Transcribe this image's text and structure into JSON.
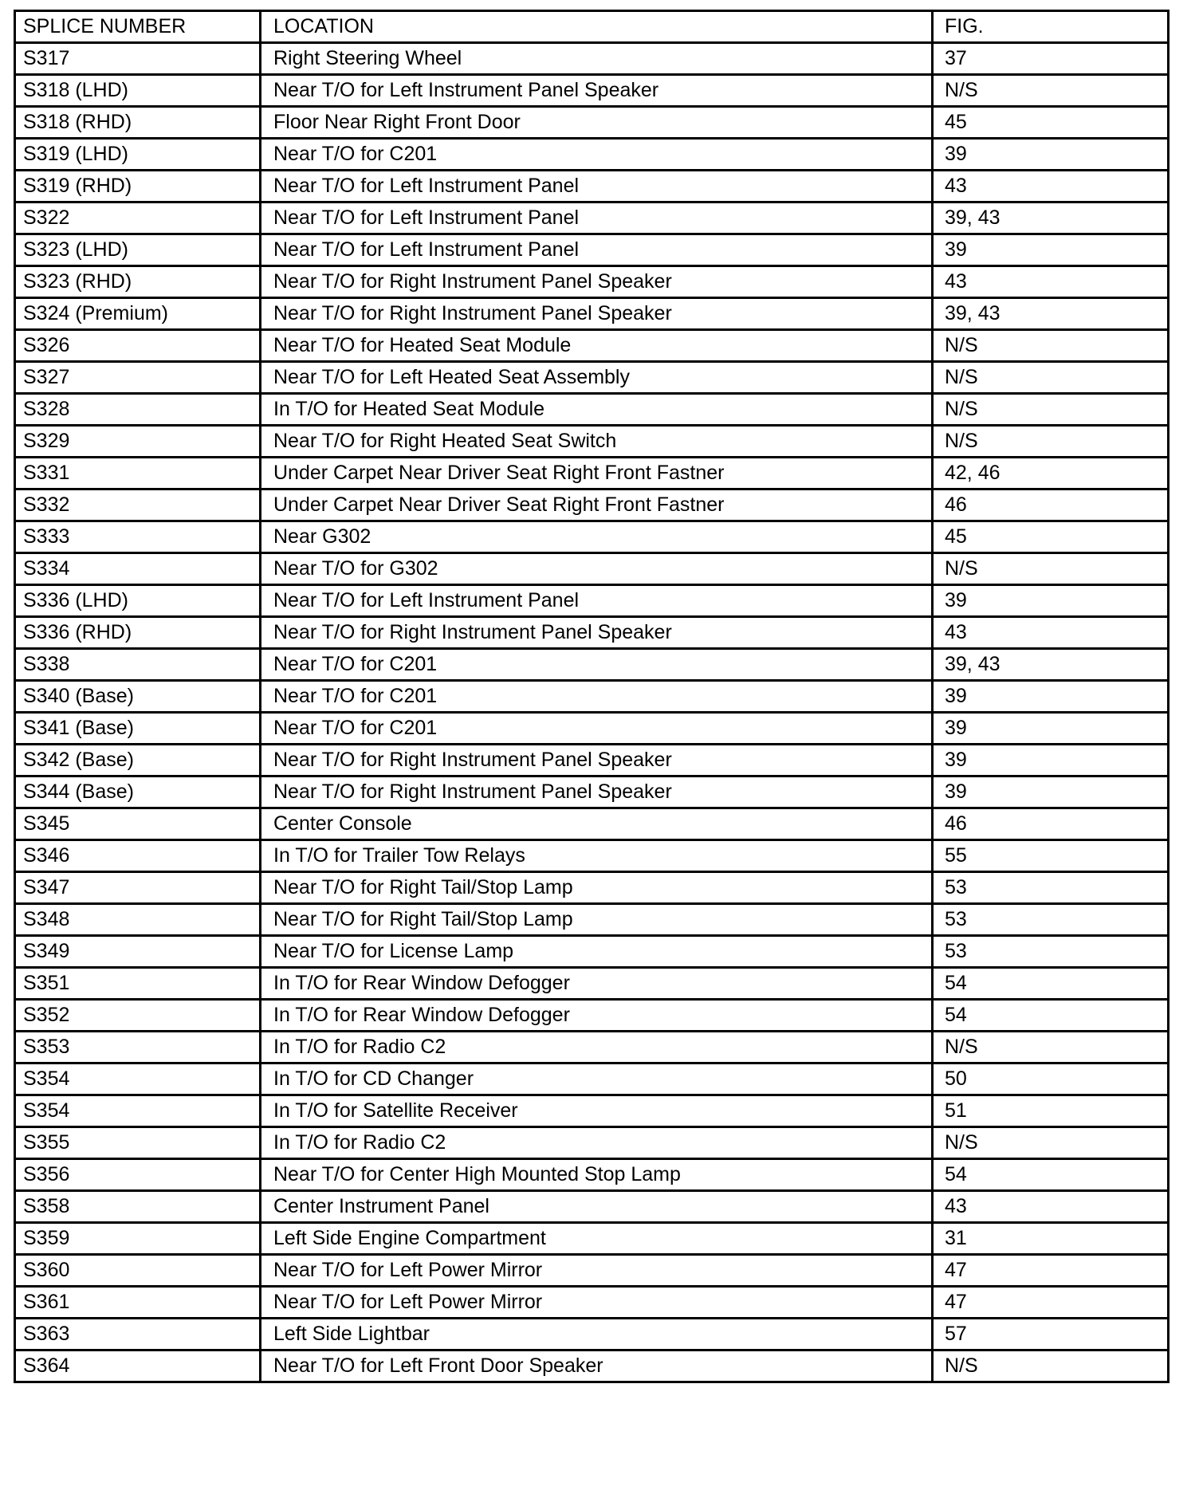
{
  "headers": {
    "splice": "SPLICE NUMBER",
    "location": "LOCATION",
    "fig": "FIG."
  },
  "rows": [
    [
      "S317",
      "Right Steering Wheel",
      "37"
    ],
    [
      "S318 (LHD)",
      "Near T/O for Left Instrument Panel Speaker",
      "N/S"
    ],
    [
      "S318 (RHD)",
      "Floor Near Right Front Door",
      "45"
    ],
    [
      "S319 (LHD)",
      "Near T/O for C201",
      "39"
    ],
    [
      "S319 (RHD)",
      "Near T/O for Left Instrument Panel",
      "43"
    ],
    [
      "S322",
      "Near T/O for Left Instrument Panel",
      "39, 43"
    ],
    [
      "S323 (LHD)",
      "Near T/O for Left Instrument Panel",
      "39"
    ],
    [
      "S323 (RHD)",
      "Near T/O for Right Instrument Panel Speaker",
      "43"
    ],
    [
      "S324 (Premium)",
      "Near T/O for Right Instrument Panel Speaker",
      "39, 43"
    ],
    [
      "S326",
      "Near T/O for Heated Seat Module",
      "N/S"
    ],
    [
      "S327",
      "Near T/O for Left Heated Seat Assembly",
      "N/S"
    ],
    [
      "S328",
      "In T/O for Heated Seat Module",
      "N/S"
    ],
    [
      "S329",
      "Near T/O for Right Heated Seat Switch",
      "N/S"
    ],
    [
      "S331",
      "Under Carpet Near Driver Seat Right Front Fastner",
      "42, 46"
    ],
    [
      "S332",
      "Under Carpet Near Driver Seat Right Front Fastner",
      "46"
    ],
    [
      "S333",
      "Near G302",
      "45"
    ],
    [
      "S334",
      "Near T/O for G302",
      "N/S"
    ],
    [
      "S336 (LHD)",
      "Near T/O for Left Instrument Panel",
      "39"
    ],
    [
      "S336 (RHD)",
      "Near T/O for Right Instrument Panel Speaker",
      "43"
    ],
    [
      "S338",
      "Near T/O for C201",
      "39, 43"
    ],
    [
      "S340 (Base)",
      "Near T/O for C201",
      "39"
    ],
    [
      "S341 (Base)",
      "Near T/O for C201",
      "39"
    ],
    [
      "S342 (Base)",
      "Near T/O for Right Instrument Panel Speaker",
      "39"
    ],
    [
      "S344 (Base)",
      "Near T/O for Right Instrument Panel Speaker",
      "39"
    ],
    [
      "S345",
      "Center Console",
      "46"
    ],
    [
      "S346",
      "In T/O for Trailer Tow Relays",
      "55"
    ],
    [
      "S347",
      "Near T/O for Right Tail/Stop Lamp",
      "53"
    ],
    [
      "S348",
      "Near T/O for Right Tail/Stop Lamp",
      "53"
    ],
    [
      "S349",
      "Near T/O for License Lamp",
      "53"
    ],
    [
      "S351",
      "In T/O for Rear Window Defogger",
      "54"
    ],
    [
      "S352",
      "In T/O for Rear Window Defogger",
      "54"
    ],
    [
      "S353",
      "In T/O for Radio C2",
      "N/S"
    ],
    [
      "S354",
      "In T/O for CD Changer",
      "50"
    ],
    [
      "S354",
      "In T/O for Satellite Receiver",
      "51"
    ],
    [
      "S355",
      "In T/O for Radio C2",
      "N/S"
    ],
    [
      "S356",
      "Near T/O for Center High Mounted Stop Lamp",
      "54"
    ],
    [
      "S358",
      "Center Instrument Panel",
      "43"
    ],
    [
      "S359",
      "Left Side Engine Compartment",
      "31"
    ],
    [
      "S360",
      "Near T/O for Left Power Mirror",
      "47"
    ],
    [
      "S361",
      "Near T/O for Left Power Mirror",
      "47"
    ],
    [
      "S363",
      "Left Side Lightbar",
      "57"
    ],
    [
      "S364",
      "Near T/O for Left Front Door Speaker",
      "N/S"
    ]
  ]
}
